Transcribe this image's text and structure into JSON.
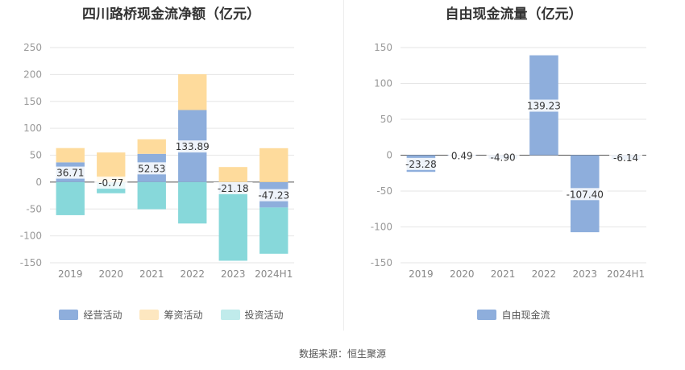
{
  "source": "数据来源：恒生聚源",
  "colors": {
    "operating": "#8eaedc",
    "financing": "#fedb9c",
    "investing": "#87d8da",
    "investing_legend": "#c0ebeb",
    "financing_legend": "#fde7c0",
    "free_cash_flow": "#8eaedc"
  },
  "chart_data": [
    {
      "type": "bar",
      "stacked": true,
      "title": "四川路桥现金流净额（亿元）",
      "categories": [
        "2019",
        "2020",
        "2021",
        "2022",
        "2023",
        "2024H1"
      ],
      "ylim": [
        -150,
        250
      ],
      "yticks": [
        250,
        200,
        150,
        100,
        50,
        0,
        -50,
        -100,
        -150
      ],
      "grid": true,
      "legend_position": "bottom",
      "series": [
        {
          "name": "经营活动",
          "values": [
            36.71,
            -0.77,
            52.53,
            133.89,
            -21.18,
            -47.23
          ],
          "labels": [
            "36.71",
            "-0.77",
            "52.53",
            "133.89",
            "-21.18",
            "-47.23"
          ]
        },
        {
          "name": "筹资活动",
          "values": [
            26.5,
            55,
            27,
            66.5,
            28,
            63
          ]
        },
        {
          "name": "投资活动",
          "values": [
            -61.5,
            -20,
            -50.5,
            -77,
            -125,
            -86
          ]
        }
      ]
    },
    {
      "type": "bar",
      "title": "自由现金流量（亿元）",
      "categories": [
        "2019",
        "2020",
        "2021",
        "2022",
        "2023",
        "2024H1"
      ],
      "ylim": [
        -150,
        150
      ],
      "yticks": [
        150,
        100,
        50,
        0,
        -50,
        -100,
        -150
      ],
      "grid": true,
      "legend_position": "bottom",
      "series": [
        {
          "name": "自由现金流",
          "values": [
            -23.28,
            0.49,
            -4.9,
            139.23,
            -107.4,
            -6.14
          ],
          "labels": [
            "-23.28",
            "0.49",
            "-4.90",
            "139.23",
            "-107.40",
            "-6.14"
          ]
        }
      ]
    }
  ]
}
